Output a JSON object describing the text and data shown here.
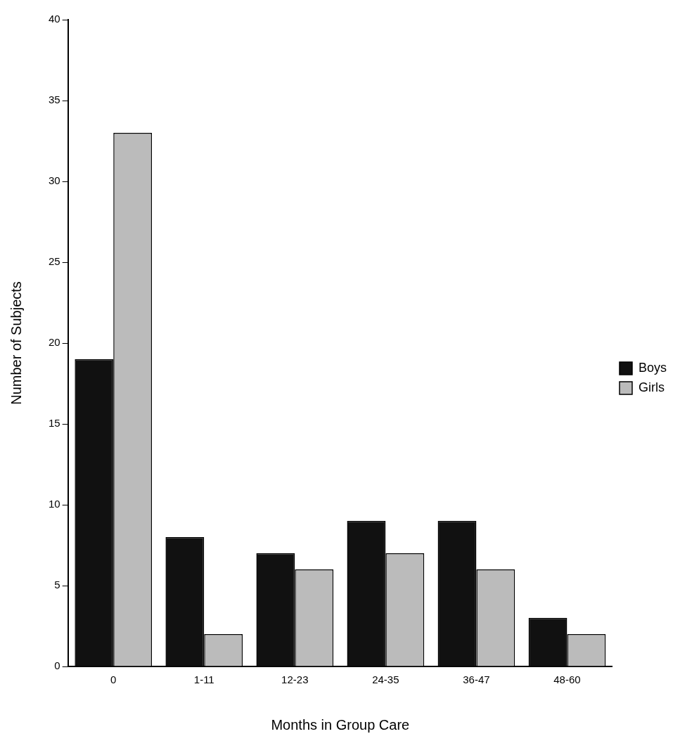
{
  "chart_data": {
    "type": "bar",
    "xlabel": "Months in Group Care",
    "ylabel": "Number of Subjects",
    "categories": [
      "0",
      "1-11",
      "12-23",
      "24-35",
      "36-47",
      "48-60"
    ],
    "series": [
      {
        "name": "Boys",
        "color": "#111111",
        "values": [
          19,
          8,
          7,
          9,
          9,
          3
        ]
      },
      {
        "name": "Girls",
        "color": "#bbbbbb",
        "values": [
          33,
          2,
          6,
          7,
          6,
          2
        ]
      }
    ],
    "ylim": [
      0,
      40
    ],
    "yticks": [
      0,
      5,
      10,
      15,
      20,
      25,
      30,
      35,
      40
    ],
    "grid": false,
    "legend": "right"
  }
}
